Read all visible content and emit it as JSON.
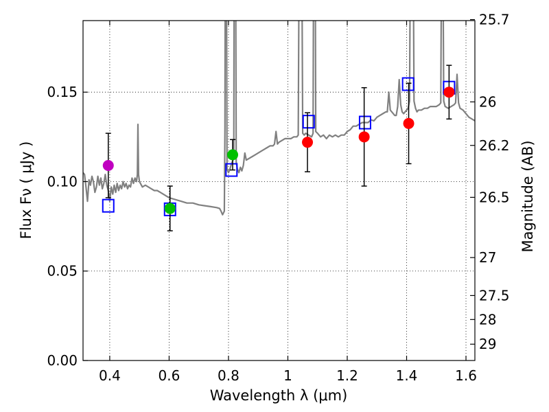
{
  "chart_data": {
    "type": "scatter",
    "xlabel": "Wavelength  λ (μm)",
    "ylabel_left": "Flux  Fν  ( μJy )",
    "ylabel_right": "Magnitude (AB)",
    "xlim": [
      0.31,
      1.63
    ],
    "ylim": [
      0.0,
      0.19
    ],
    "grid": true,
    "x_ticks": [
      0.4,
      0.6,
      0.8,
      1.0,
      1.2,
      1.4,
      1.6
    ],
    "x_tick_labels": [
      "0.4",
      "0.6",
      "0.8",
      "1",
      "1.2",
      "1.4",
      "1.6"
    ],
    "y_ticks": [
      0.0,
      0.05,
      0.1,
      0.15
    ],
    "y_tick_labels": [
      "0.00",
      "0.05",
      "0.10",
      "0.15"
    ],
    "mag_ticks": [
      25.7,
      26,
      26.2,
      26.5,
      27,
      27.5,
      28,
      29
    ],
    "mag_tick_labels": [
      "25.7",
      "26",
      "26.2",
      "26.5",
      "27",
      "27.5",
      "28",
      "29"
    ],
    "observed": [
      {
        "x": 0.395,
        "y": 0.109,
        "err": 0.018,
        "color": "#c000c0"
      },
      {
        "x": 0.603,
        "y": 0.085,
        "err": 0.0125,
        "color": "#00c000"
      },
      {
        "x": 0.814,
        "y": 0.115,
        "err": 0.0085,
        "color": "#00c000"
      },
      {
        "x": 1.066,
        "y": 0.122,
        "err": 0.0165,
        "color": "#ff0000"
      },
      {
        "x": 1.257,
        "y": 0.125,
        "err": 0.0275,
        "color": "#ff0000"
      },
      {
        "x": 1.407,
        "y": 0.1325,
        "err": 0.0225,
        "color": "#ff0000"
      },
      {
        "x": 1.543,
        "y": 0.15,
        "err": 0.015,
        "color": "#ff0000"
      }
    ],
    "model_photometry": [
      {
        "x": 0.395,
        "y": 0.0865
      },
      {
        "x": 0.603,
        "y": 0.0845
      },
      {
        "x": 0.81,
        "y": 0.1065
      },
      {
        "x": 1.07,
        "y": 0.1335
      },
      {
        "x": 1.26,
        "y": 0.133
      },
      {
        "x": 1.405,
        "y": 0.1545
      },
      {
        "x": 1.543,
        "y": 0.1525
      }
    ],
    "spectrum": {
      "color": "#808080",
      "points": [
        [
          0.31,
          0.105
        ],
        [
          0.315,
          0.104
        ],
        [
          0.32,
          0.097
        ],
        [
          0.325,
          0.089
        ],
        [
          0.33,
          0.101
        ],
        [
          0.335,
          0.098
        ],
        [
          0.34,
          0.103
        ],
        [
          0.345,
          0.1
        ],
        [
          0.35,
          0.094
        ],
        [
          0.355,
          0.097
        ],
        [
          0.36,
          0.103
        ],
        [
          0.365,
          0.098
        ],
        [
          0.37,
          0.102
        ],
        [
          0.375,
          0.096
        ],
        [
          0.38,
          0.099
        ],
        [
          0.385,
          0.104
        ],
        [
          0.39,
          0.098
        ],
        [
          0.395,
          0.095
        ],
        [
          0.4,
          0.089
        ],
        [
          0.405,
          0.097
        ],
        [
          0.41,
          0.093
        ],
        [
          0.415,
          0.098
        ],
        [
          0.42,
          0.094
        ],
        [
          0.425,
          0.099
        ],
        [
          0.43,
          0.095
        ],
        [
          0.435,
          0.098
        ],
        [
          0.44,
          0.096
        ],
        [
          0.445,
          0.1
        ],
        [
          0.45,
          0.097
        ],
        [
          0.455,
          0.099
        ],
        [
          0.46,
          0.096
        ],
        [
          0.465,
          0.098
        ],
        [
          0.47,
          0.097
        ],
        [
          0.475,
          0.102
        ],
        [
          0.48,
          0.099
        ],
        [
          0.485,
          0.102
        ],
        [
          0.49,
          0.1
        ],
        [
          0.493,
          0.104
        ],
        [
          0.495,
          0.132
        ],
        [
          0.497,
          0.104
        ],
        [
          0.5,
          0.1
        ],
        [
          0.51,
          0.097
        ],
        [
          0.52,
          0.098
        ],
        [
          0.53,
          0.097
        ],
        [
          0.54,
          0.096
        ],
        [
          0.55,
          0.095
        ],
        [
          0.56,
          0.095
        ],
        [
          0.57,
          0.094
        ],
        [
          0.58,
          0.093
        ],
        [
          0.59,
          0.092
        ],
        [
          0.6,
          0.091
        ],
        [
          0.62,
          0.09
        ],
        [
          0.64,
          0.089
        ],
        [
          0.66,
          0.088
        ],
        [
          0.68,
          0.088
        ],
        [
          0.7,
          0.087
        ],
        [
          0.72,
          0.0865
        ],
        [
          0.74,
          0.086
        ],
        [
          0.76,
          0.0855
        ],
        [
          0.77,
          0.085
        ],
        [
          0.775,
          0.0835
        ],
        [
          0.78,
          0.0815
        ],
        [
          0.783,
          0.0825
        ],
        [
          0.786,
          0.0835
        ],
        [
          0.788,
          0.13
        ],
        [
          0.79,
          0.3
        ],
        [
          0.792,
          0.3
        ],
        [
          0.795,
          0.107
        ],
        [
          0.8,
          0.105
        ],
        [
          0.805,
          0.107
        ],
        [
          0.81,
          0.11
        ],
        [
          0.815,
          0.112
        ],
        [
          0.818,
          0.116
        ],
        [
          0.82,
          0.3
        ],
        [
          0.823,
          0.3
        ],
        [
          0.826,
          0.111
        ],
        [
          0.83,
          0.107
        ],
        [
          0.835,
          0.105
        ],
        [
          0.84,
          0.108
        ],
        [
          0.845,
          0.106
        ],
        [
          0.85,
          0.109
        ],
        [
          0.855,
          0.116
        ],
        [
          0.86,
          0.112
        ],
        [
          0.87,
          0.113
        ],
        [
          0.88,
          0.114
        ],
        [
          0.89,
          0.115
        ],
        [
          0.9,
          0.116
        ],
        [
          0.91,
          0.117
        ],
        [
          0.92,
          0.118
        ],
        [
          0.93,
          0.119
        ],
        [
          0.94,
          0.12
        ],
        [
          0.95,
          0.12
        ],
        [
          0.955,
          0.121
        ],
        [
          0.96,
          0.128
        ],
        [
          0.965,
          0.121
        ],
        [
          0.97,
          0.122
        ],
        [
          0.98,
          0.123
        ],
        [
          0.99,
          0.124
        ],
        [
          1.0,
          0.124
        ],
        [
          1.01,
          0.124
        ],
        [
          1.02,
          0.125
        ],
        [
          1.03,
          0.125
        ],
        [
          1.035,
          0.126
        ],
        [
          1.04,
          0.3
        ],
        [
          1.045,
          0.3
        ],
        [
          1.05,
          0.127
        ],
        [
          1.055,
          0.126
        ],
        [
          1.06,
          0.127
        ],
        [
          1.07,
          0.126
        ],
        [
          1.08,
          0.125
        ],
        [
          1.085,
          0.127
        ],
        [
          1.088,
          0.3
        ],
        [
          1.091,
          0.3
        ],
        [
          1.094,
          0.128
        ],
        [
          1.1,
          0.127
        ],
        [
          1.11,
          0.125
        ],
        [
          1.12,
          0.126
        ],
        [
          1.13,
          0.124
        ],
        [
          1.14,
          0.126
        ],
        [
          1.15,
          0.125
        ],
        [
          1.16,
          0.126
        ],
        [
          1.17,
          0.125
        ],
        [
          1.18,
          0.126
        ],
        [
          1.19,
          0.126
        ],
        [
          1.2,
          0.128
        ],
        [
          1.21,
          0.129
        ],
        [
          1.22,
          0.131
        ],
        [
          1.23,
          0.131
        ],
        [
          1.24,
          0.132
        ],
        [
          1.25,
          0.133
        ],
        [
          1.26,
          0.133
        ],
        [
          1.27,
          0.133
        ],
        [
          1.28,
          0.1345
        ],
        [
          1.29,
          0.134
        ],
        [
          1.3,
          0.136
        ],
        [
          1.31,
          0.137
        ],
        [
          1.32,
          0.138
        ],
        [
          1.33,
          0.139
        ],
        [
          1.335,
          0.139
        ],
        [
          1.34,
          0.15
        ],
        [
          1.345,
          0.14
        ],
        [
          1.35,
          0.139
        ],
        [
          1.36,
          0.137
        ],
        [
          1.365,
          0.137
        ],
        [
          1.37,
          0.142
        ],
        [
          1.375,
          0.157
        ],
        [
          1.38,
          0.143
        ],
        [
          1.385,
          0.139
        ],
        [
          1.39,
          0.138
        ],
        [
          1.395,
          0.139
        ],
        [
          1.4,
          0.14
        ],
        [
          1.405,
          0.141
        ],
        [
          1.41,
          0.145
        ],
        [
          1.415,
          0.3
        ],
        [
          1.42,
          0.3
        ],
        [
          1.425,
          0.145
        ],
        [
          1.43,
          0.141
        ],
        [
          1.435,
          0.139
        ],
        [
          1.44,
          0.14
        ],
        [
          1.45,
          0.14
        ],
        [
          1.46,
          0.141
        ],
        [
          1.47,
          0.141
        ],
        [
          1.48,
          0.142
        ],
        [
          1.49,
          0.142
        ],
        [
          1.5,
          0.142
        ],
        [
          1.51,
          0.143
        ],
        [
          1.515,
          0.144
        ],
        [
          1.52,
          0.3
        ],
        [
          1.525,
          0.145
        ],
        [
          1.53,
          0.142
        ],
        [
          1.54,
          0.141
        ],
        [
          1.55,
          0.142
        ],
        [
          1.56,
          0.143
        ],
        [
          1.565,
          0.144
        ],
        [
          1.57,
          0.16
        ],
        [
          1.575,
          0.144
        ],
        [
          1.58,
          0.141
        ],
        [
          1.59,
          0.14
        ],
        [
          1.6,
          0.138
        ],
        [
          1.61,
          0.136
        ],
        [
          1.62,
          0.135
        ],
        [
          1.63,
          0.134
        ]
      ]
    }
  }
}
